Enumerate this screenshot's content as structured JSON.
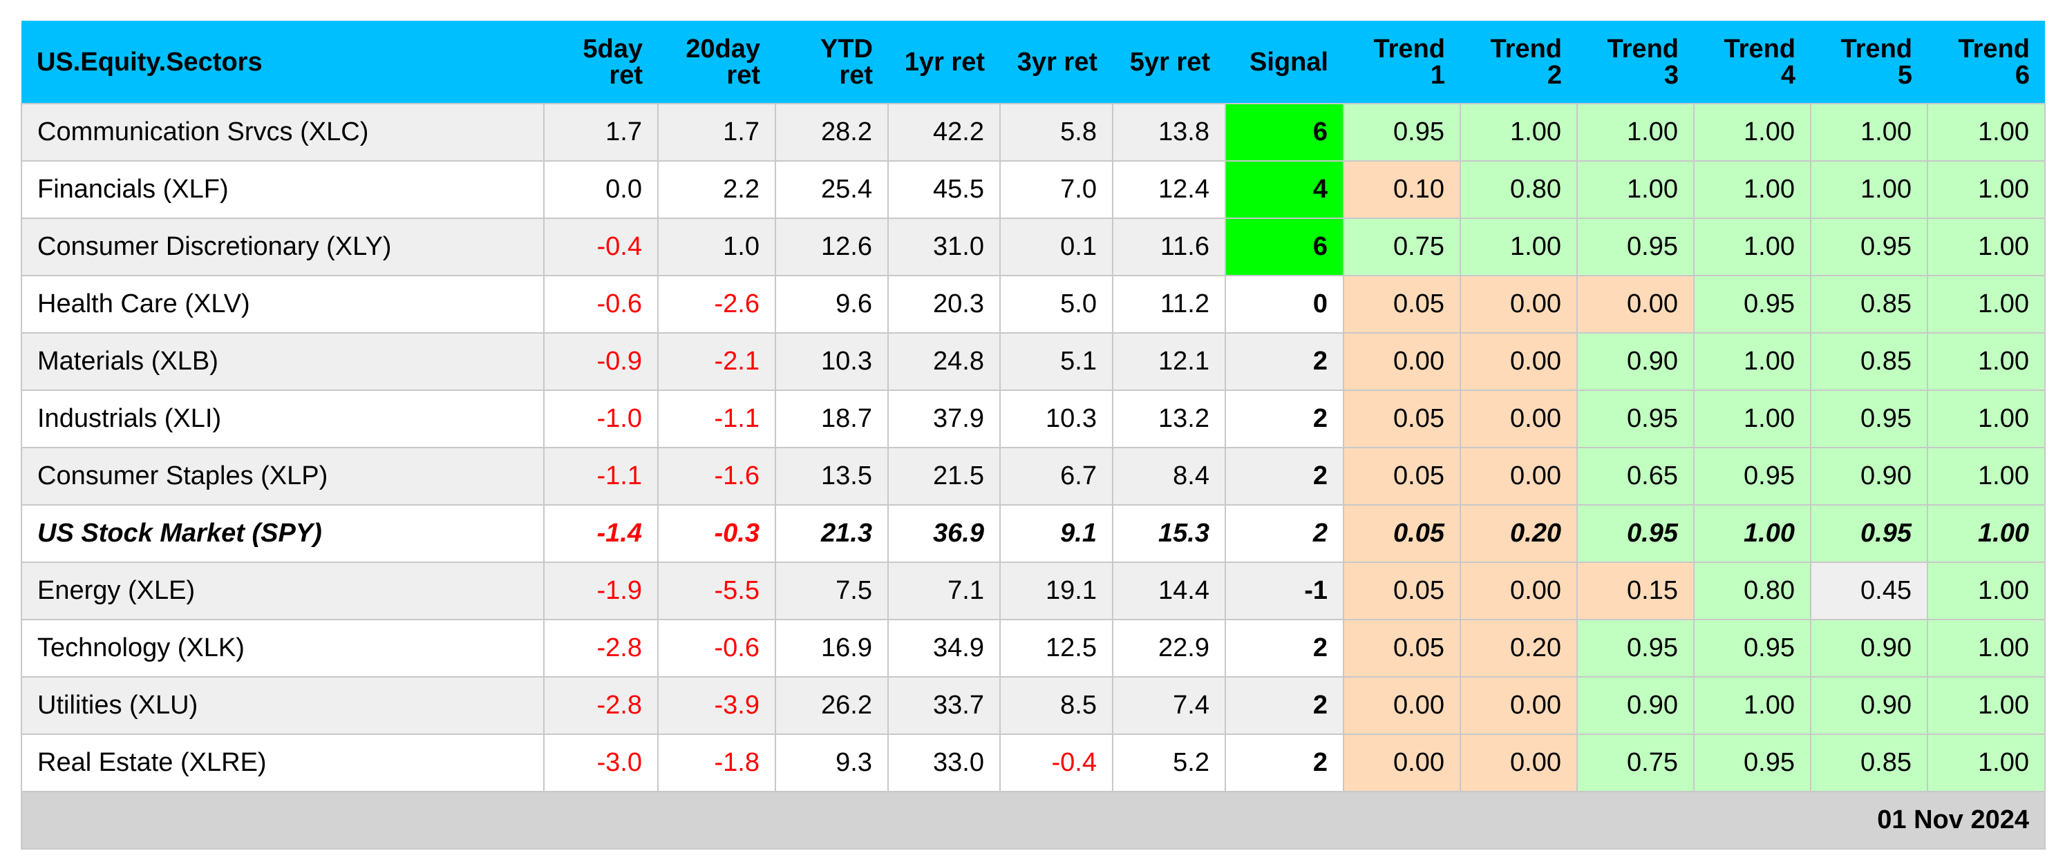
{
  "chart_data": {
    "type": "table",
    "columns": [
      {
        "key": "name",
        "label": [
          "US.Equity.Sectors"
        ]
      },
      {
        "key": "r5d",
        "label": [
          "5day",
          "ret"
        ]
      },
      {
        "key": "r20d",
        "label": [
          "20day",
          "ret"
        ]
      },
      {
        "key": "ytd",
        "label": [
          "YTD",
          "ret"
        ]
      },
      {
        "key": "r1y",
        "label": [
          "1yr ret"
        ]
      },
      {
        "key": "r3y",
        "label": [
          "3yr ret"
        ]
      },
      {
        "key": "r5y",
        "label": [
          "5yr ret"
        ]
      },
      {
        "key": "signal",
        "label": [
          "Signal"
        ]
      },
      {
        "key": "t1",
        "label": [
          "Trend",
          "1"
        ]
      },
      {
        "key": "t2",
        "label": [
          "Trend",
          "2"
        ]
      },
      {
        "key": "t3",
        "label": [
          "Trend",
          "3"
        ]
      },
      {
        "key": "t4",
        "label": [
          "Trend",
          "4"
        ]
      },
      {
        "key": "t5",
        "label": [
          "Trend",
          "5"
        ]
      },
      {
        "key": "t6",
        "label": [
          "Trend",
          "6"
        ]
      }
    ],
    "rows": [
      {
        "name": "Communication Srvcs (XLC)",
        "benchmark": false,
        "returns": [
          "1.7",
          "1.7",
          "28.2",
          "42.2",
          "5.8",
          "13.8"
        ],
        "signal": "6",
        "trends": [
          "0.95",
          "1.00",
          "1.00",
          "1.00",
          "1.00",
          "1.00"
        ]
      },
      {
        "name": "Financials (XLF)",
        "benchmark": false,
        "returns": [
          "0.0",
          "2.2",
          "25.4",
          "45.5",
          "7.0",
          "12.4"
        ],
        "signal": "4",
        "trends": [
          "0.10",
          "0.80",
          "1.00",
          "1.00",
          "1.00",
          "1.00"
        ]
      },
      {
        "name": "Consumer Discretionary (XLY)",
        "benchmark": false,
        "returns": [
          "-0.4",
          "1.0",
          "12.6",
          "31.0",
          "0.1",
          "11.6"
        ],
        "signal": "6",
        "trends": [
          "0.75",
          "1.00",
          "0.95",
          "1.00",
          "0.95",
          "1.00"
        ]
      },
      {
        "name": "Health Care (XLV)",
        "benchmark": false,
        "returns": [
          "-0.6",
          "-2.6",
          "9.6",
          "20.3",
          "5.0",
          "11.2"
        ],
        "signal": "0",
        "trends": [
          "0.05",
          "0.00",
          "0.00",
          "0.95",
          "0.85",
          "1.00"
        ]
      },
      {
        "name": "Materials (XLB)",
        "benchmark": false,
        "returns": [
          "-0.9",
          "-2.1",
          "10.3",
          "24.8",
          "5.1",
          "12.1"
        ],
        "signal": "2",
        "trends": [
          "0.00",
          "0.00",
          "0.90",
          "1.00",
          "0.85",
          "1.00"
        ]
      },
      {
        "name": "Industrials (XLI)",
        "benchmark": false,
        "returns": [
          "-1.0",
          "-1.1",
          "18.7",
          "37.9",
          "10.3",
          "13.2"
        ],
        "signal": "2",
        "trends": [
          "0.05",
          "0.00",
          "0.95",
          "1.00",
          "0.95",
          "1.00"
        ]
      },
      {
        "name": "Consumer Staples (XLP)",
        "benchmark": false,
        "returns": [
          "-1.1",
          "-1.6",
          "13.5",
          "21.5",
          "6.7",
          "8.4"
        ],
        "signal": "2",
        "trends": [
          "0.05",
          "0.00",
          "0.65",
          "0.95",
          "0.90",
          "1.00"
        ]
      },
      {
        "name": "US Stock Market (SPY)",
        "benchmark": true,
        "returns": [
          "-1.4",
          "-0.3",
          "21.3",
          "36.9",
          "9.1",
          "15.3"
        ],
        "signal": "2",
        "trends": [
          "0.05",
          "0.20",
          "0.95",
          "1.00",
          "0.95",
          "1.00"
        ]
      },
      {
        "name": "Energy (XLE)",
        "benchmark": false,
        "returns": [
          "-1.9",
          "-5.5",
          "7.5",
          "7.1",
          "19.1",
          "14.4"
        ],
        "signal": "-1",
        "trends": [
          "0.05",
          "0.00",
          "0.15",
          "0.80",
          "0.45",
          "1.00"
        ]
      },
      {
        "name": "Technology (XLK)",
        "benchmark": false,
        "returns": [
          "-2.8",
          "-0.6",
          "16.9",
          "34.9",
          "12.5",
          "22.9"
        ],
        "signal": "2",
        "trends": [
          "0.05",
          "0.20",
          "0.95",
          "0.95",
          "0.90",
          "1.00"
        ]
      },
      {
        "name": "Utilities (XLU)",
        "benchmark": false,
        "returns": [
          "-2.8",
          "-3.9",
          "26.2",
          "33.7",
          "8.5",
          "7.4"
        ],
        "signal": "2",
        "trends": [
          "0.00",
          "0.00",
          "0.90",
          "1.00",
          "0.90",
          "1.00"
        ]
      },
      {
        "name": "Real Estate (XLRE)",
        "benchmark": false,
        "returns": [
          "-3.0",
          "-1.8",
          "9.3",
          "33.0",
          "-0.4",
          "5.2"
        ],
        "signal": "2",
        "trends": [
          "0.00",
          "0.00",
          "0.75",
          "0.95",
          "0.85",
          "1.00"
        ]
      }
    ],
    "footer": "01 Nov 2024",
    "colors": {
      "header_bg": "#00bfff",
      "signal_strong": "#00ff00",
      "trend_high": "#c1ffc1",
      "trend_low": "#ffdab9",
      "trend_mid": "#efefef",
      "negative_text": "#ff0000",
      "row_alt": "#efefef",
      "footer_bg": "#d3d3d3"
    }
  }
}
